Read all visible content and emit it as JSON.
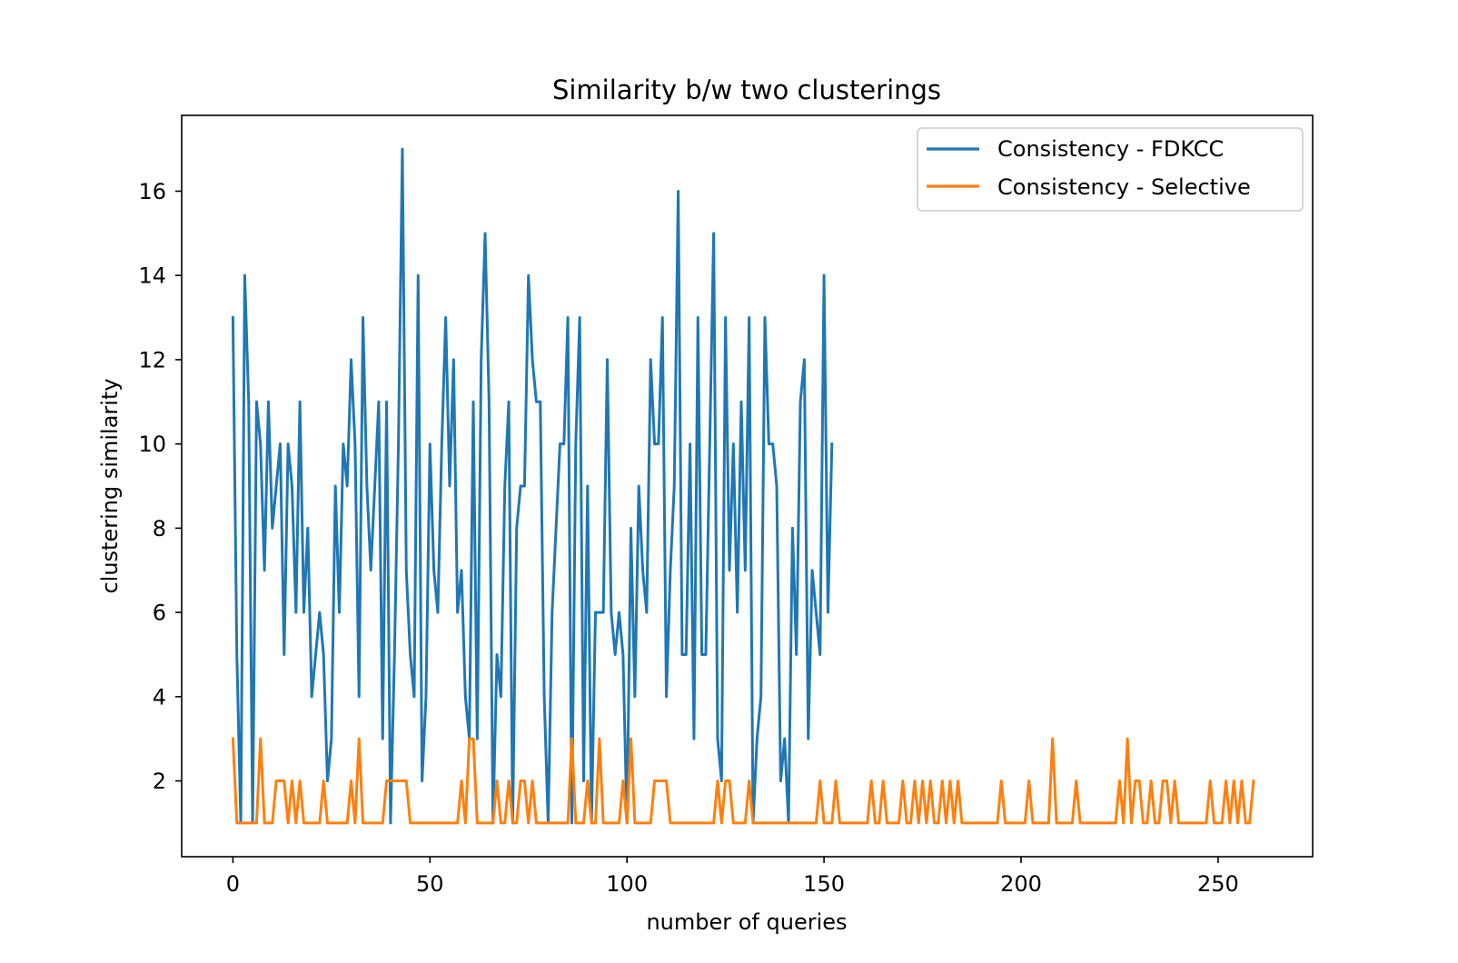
{
  "chart_data": {
    "type": "line",
    "title": "Similarity b/w two clusterings",
    "xlabel": "number of queries",
    "ylabel": "clustering similarity",
    "xlim": [
      -13,
      274
    ],
    "ylim": [
      0.2,
      17.8
    ],
    "xticks": [
      0,
      50,
      100,
      150,
      200,
      250
    ],
    "yticks": [
      2,
      4,
      6,
      8,
      10,
      12,
      14,
      16
    ],
    "grid": false,
    "legend_position": "top-right",
    "series": [
      {
        "name": "Consistency - FDKCC",
        "color": "#1f77b4",
        "values": [
          13,
          5,
          1,
          14,
          11,
          1,
          11,
          10,
          7,
          11,
          8,
          9,
          10,
          5,
          10,
          9,
          6,
          11,
          6,
          8,
          4,
          5,
          6,
          5,
          2,
          3,
          9,
          6,
          10,
          9,
          12,
          10,
          4,
          13,
          9,
          7,
          9,
          11,
          3,
          11,
          1,
          5,
          10,
          17,
          7,
          5,
          4,
          14,
          2,
          4,
          10,
          7,
          6,
          10,
          13,
          9,
          12,
          6,
          7,
          4,
          3,
          11,
          3,
          12,
          15,
          11,
          1,
          5,
          4,
          9,
          11,
          1,
          8,
          9,
          9,
          14,
          12,
          11,
          11,
          4,
          1,
          6,
          8,
          10,
          10,
          13,
          1,
          10,
          13,
          2,
          9,
          1,
          6,
          6,
          6,
          12,
          6,
          5,
          6,
          5,
          1,
          8,
          4,
          9,
          7,
          6,
          12,
          10,
          10,
          13,
          4,
          7,
          9,
          16,
          5,
          5,
          10,
          3,
          13,
          5,
          5,
          10,
          15,
          3,
          2,
          13,
          7,
          10,
          6,
          11,
          7,
          13,
          1,
          3,
          4,
          13,
          10,
          10,
          9,
          2,
          3,
          1,
          8,
          5,
          11,
          12,
          3,
          7,
          6,
          5,
          14,
          6,
          10
        ]
      },
      {
        "name": "Consistency - Selective",
        "color": "#ff7f0e",
        "values": [
          3,
          1,
          1,
          1,
          1,
          1,
          1,
          3,
          1,
          1,
          1,
          2,
          2,
          2,
          1,
          2,
          1,
          2,
          1,
          1,
          1,
          1,
          1,
          2,
          1,
          1,
          1,
          1,
          1,
          1,
          2,
          1,
          3,
          1,
          1,
          1,
          1,
          1,
          1,
          2,
          2,
          2,
          2,
          2,
          2,
          1,
          1,
          1,
          1,
          1,
          1,
          1,
          1,
          1,
          1,
          1,
          1,
          1,
          2,
          1,
          3,
          3,
          1,
          1,
          1,
          1,
          1,
          2,
          1,
          1,
          2,
          1,
          1,
          2,
          2,
          1,
          2,
          1,
          1,
          1,
          1,
          1,
          1,
          1,
          1,
          1,
          3,
          1,
          1,
          1,
          2,
          1,
          1,
          3,
          1,
          1,
          1,
          1,
          1,
          2,
          1,
          3,
          1,
          1,
          1,
          1,
          1,
          2,
          2,
          2,
          2,
          1,
          1,
          1,
          1,
          1,
          1,
          1,
          1,
          1,
          1,
          1,
          1,
          2,
          1,
          2,
          2,
          1,
          1,
          1,
          1,
          2,
          1,
          1,
          1,
          1,
          1,
          1,
          1,
          1,
          1,
          1,
          1,
          1,
          1,
          1,
          1,
          1,
          1,
          2,
          1,
          1,
          1,
          2,
          1,
          1,
          1,
          1,
          1,
          1,
          1,
          1,
          2,
          1,
          1,
          2,
          1,
          1,
          1,
          1,
          2,
          1,
          1,
          2,
          1,
          2,
          1,
          2,
          1,
          1,
          2,
          1,
          2,
          1,
          2,
          1,
          1,
          1,
          1,
          1,
          1,
          1,
          1,
          1,
          1,
          2,
          1,
          1,
          1,
          1,
          1,
          1,
          2,
          1,
          1,
          1,
          1,
          1,
          3,
          1,
          1,
          1,
          1,
          1,
          2,
          1,
          1,
          1,
          1,
          1,
          1,
          1,
          1,
          1,
          1,
          2,
          1,
          3,
          1,
          2,
          2,
          1,
          1,
          2,
          1,
          1,
          2,
          2,
          1,
          2,
          1,
          1,
          1,
          1,
          1,
          1,
          1,
          1,
          2,
          1,
          1,
          1,
          2,
          1,
          2,
          1,
          2,
          1,
          1,
          2
        ]
      }
    ]
  }
}
